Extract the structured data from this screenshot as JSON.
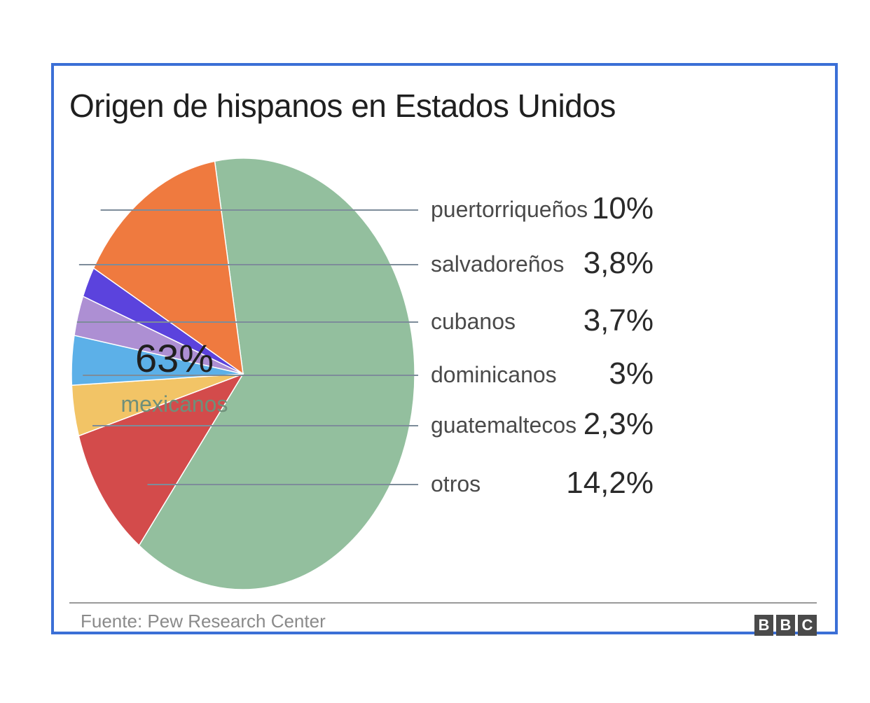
{
  "chart_data": {
    "type": "pie",
    "title": "Origen de hispanos en Estados Unidos",
    "source": "Fuente: Pew Research Center",
    "logo": [
      "B",
      "B",
      "C"
    ],
    "slices": [
      {
        "name": "mexicanos",
        "value": 63,
        "label": "63%",
        "color": "#93bf9e"
      },
      {
        "name": "puertorriqueños",
        "value": 10,
        "label": "10%",
        "color": "#d34b4b"
      },
      {
        "name": "salvadoreños",
        "value": 3.8,
        "label": "3,8%",
        "color": "#f2c466"
      },
      {
        "name": "cubanos",
        "value": 3.7,
        "label": "3,7%",
        "color": "#5cb0e8"
      },
      {
        "name": "dominicanos",
        "value": 3,
        "label": "3%",
        "color": "#ad8fd3"
      },
      {
        "name": "guatemaltecos",
        "value": 2.3,
        "label": "2,3%",
        "color": "#5b43dd"
      },
      {
        "name": "otros",
        "value": 14.2,
        "label": "14,2%",
        "color": "#ef7a3f"
      }
    ]
  }
}
